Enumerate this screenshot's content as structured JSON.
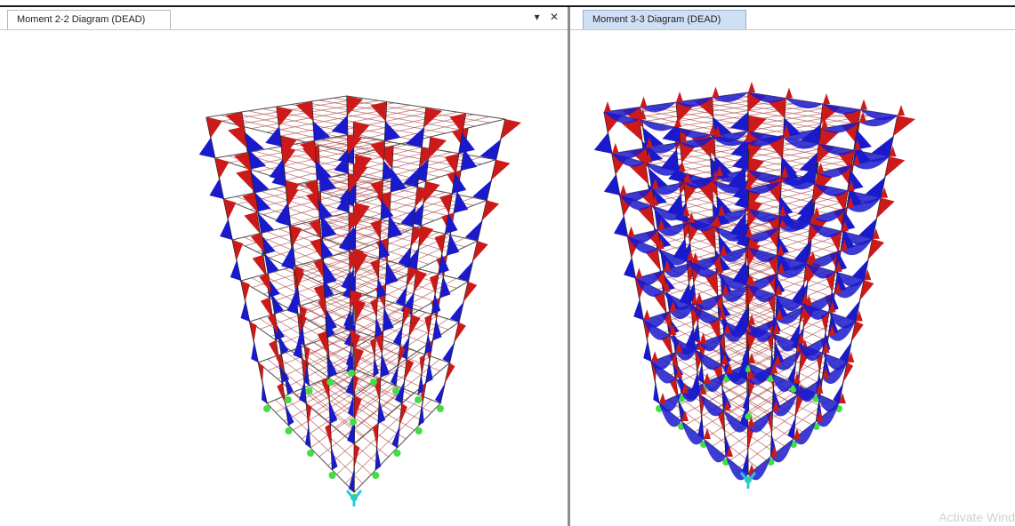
{
  "left_pane": {
    "tab_label": "Moment 2-2 Diagram (DEAD)",
    "dropdown_glyph": "▾",
    "close_glyph": "✕"
  },
  "right_pane": {
    "tab_label": "Moment 3-3 Diagram (DEAD)"
  },
  "watermark": "Activate Wind",
  "colors": {
    "positive_moment": "#1a1acc",
    "negative_moment": "#cc1a1a",
    "slab_mesh": "#b05050",
    "column": "#202020",
    "support": "#44dd44",
    "selected_support": "#22c8e8"
  },
  "icons": {
    "dropdown": "chevron-down-icon",
    "close": "close-icon"
  }
}
